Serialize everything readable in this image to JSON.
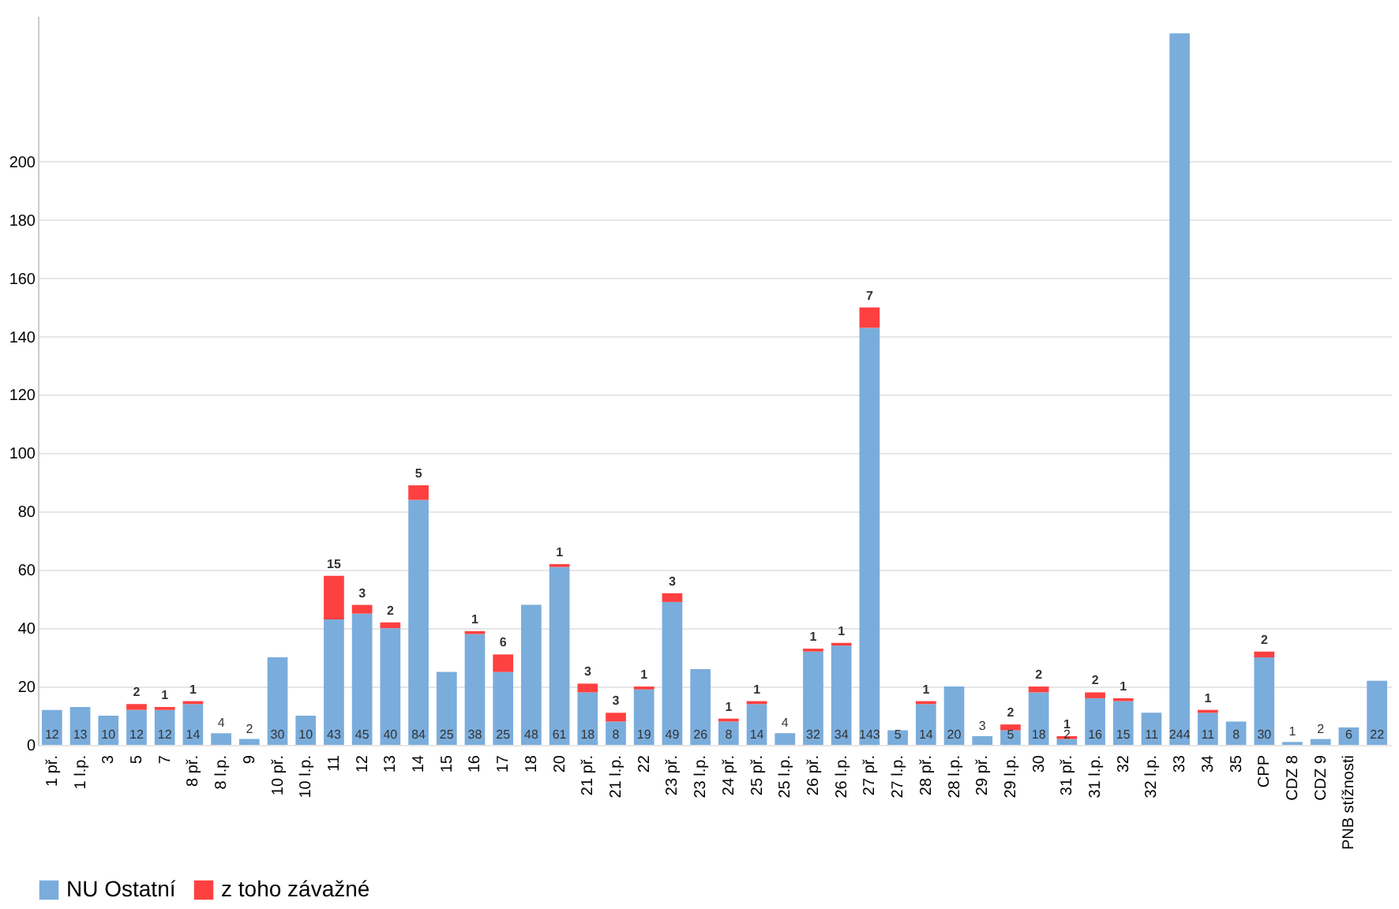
{
  "chart_data": {
    "type": "bar",
    "stacked": true,
    "legend": "bottom",
    "grid": "y",
    "data_labels": true,
    "categories": [
      "1 př.",
      "1 l.p.",
      "3",
      "5",
      "7",
      "8 př.",
      "8 l.p.",
      "9",
      "10 př.",
      "10 l.p.",
      "11",
      "12",
      "13",
      "14",
      "15",
      "16",
      "17",
      "18",
      "20",
      "21 př.",
      "21 l.p.",
      "22",
      "23 př.",
      "23 l.p.",
      "24 př.",
      "25 př.",
      "25 l.p.",
      "26 př.",
      "26 l.p.",
      "27 př.",
      "27 l.p.",
      "28 př.",
      "28 l.p.",
      "29 př.",
      "29 l.p.",
      "30",
      "31 př.",
      "31 l.p.",
      "32",
      "32 l.p.",
      "33",
      "34",
      "35",
      "CPP",
      "CDZ 8",
      "CDZ 9",
      "PNB stížnosti",
      null
    ],
    "series": [
      {
        "name": "NU Ostatní",
        "color": "#7aaddc",
        "values": [
          12,
          13,
          10,
          12,
          12,
          14,
          4,
          2,
          30,
          10,
          43,
          45,
          40,
          84,
          25,
          38,
          25,
          48,
          61,
          18,
          8,
          19,
          49,
          26,
          8,
          14,
          4,
          32,
          34,
          143,
          5,
          14,
          20,
          3,
          5,
          18,
          2,
          16,
          15,
          11,
          244,
          11,
          8,
          30,
          1,
          2,
          6,
          22
        ]
      },
      {
        "name": "z toho závažné",
        "color": "#ff4040",
        "values": [
          null,
          null,
          null,
          2,
          1,
          1,
          null,
          null,
          null,
          null,
          15,
          3,
          2,
          5,
          null,
          1,
          6,
          null,
          1,
          3,
          3,
          1,
          3,
          null,
          1,
          1,
          null,
          1,
          1,
          7,
          null,
          1,
          null,
          null,
          2,
          2,
          1,
          2,
          1,
          null,
          null,
          1,
          null,
          2,
          null,
          null,
          null,
          null
        ]
      }
    ],
    "ylim": [
      0,
      250
    ],
    "yticks": [
      0,
      20,
      40,
      60,
      80,
      100,
      120,
      140,
      160,
      180,
      200
    ]
  }
}
